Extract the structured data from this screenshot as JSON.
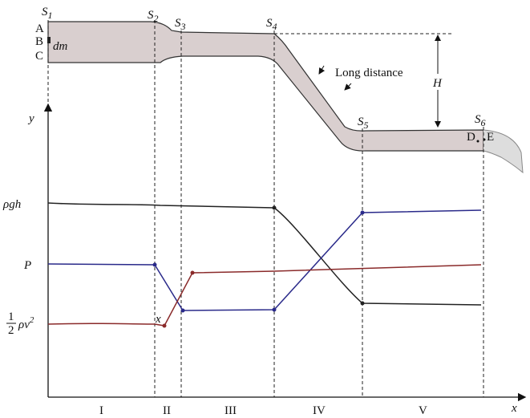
{
  "pipe": {
    "sections": [
      {
        "letter": "S",
        "sub": "1"
      },
      {
        "letter": "S",
        "sub": "2"
      },
      {
        "letter": "S",
        "sub": "3"
      },
      {
        "letter": "S",
        "sub": "4"
      },
      {
        "letter": "S",
        "sub": "5"
      },
      {
        "letter": "S",
        "sub": "6"
      }
    ],
    "points": [
      "A",
      "B",
      "C",
      "D",
      "E"
    ],
    "element": "dm",
    "note": "Long distance",
    "height": "H"
  },
  "graph": {
    "y_axis": "y",
    "x_axis": "x",
    "curves": {
      "potential": "ρgh",
      "pressure": "P",
      "kinetic": {
        "numerator": "1",
        "denominator": "2",
        "term": "ρv",
        "exponent": "2"
      }
    },
    "marker": "x",
    "regions": [
      "I",
      "II",
      "III",
      "IV",
      "V"
    ]
  }
}
